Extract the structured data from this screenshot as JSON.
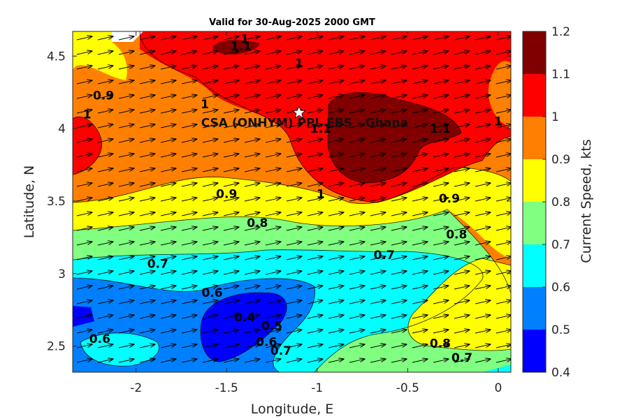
{
  "chart_data": {
    "type": "heatmap",
    "title": "Valid for 30-Aug-2025 2000 GMT",
    "xlabel": "Longitude, E",
    "ylabel": "Latitude, N",
    "colorbar_label": "Current Speed, kts",
    "xlim": [
      -2.35,
      0.07
    ],
    "ylim": [
      2.32,
      4.67
    ],
    "x_ticks": [
      "-2",
      "-1.5",
      "-1",
      "-0.5",
      "0"
    ],
    "x_tick_values": [
      -2,
      -1.5,
      -1,
      -0.5,
      0
    ],
    "y_ticks": [
      "2.5",
      "3",
      "3.5",
      "4",
      "4.5"
    ],
    "y_tick_values": [
      2.5,
      3,
      3.5,
      4,
      4.5
    ],
    "colorbar_ticks": [
      "0.4",
      "0.5",
      "0.6",
      "0.7",
      "0.8",
      "0.9",
      "1",
      "1.1",
      "1.2"
    ],
    "levels": [
      0.4,
      0.5,
      0.6,
      0.7,
      0.8,
      0.9,
      1.0,
      1.1,
      1.2
    ],
    "level_colors": [
      "#0000ff",
      "#0080ff",
      "#00ffff",
      "#80ff80",
      "#ffff00",
      "#ff8000",
      "#ff0000",
      "#800000"
    ],
    "site": {
      "name": "CSA (ONHYM) PPL EBS  - Ghana",
      "lon": -1.1,
      "lat": 4.11
    },
    "contour_labels": [
      {
        "text": "1",
        "lon": -1.4,
        "lat": 4.62
      },
      {
        "text": "1.1",
        "lon": -1.42,
        "lat": 4.57
      },
      {
        "text": "1",
        "lon": -1.1,
        "lat": 4.45
      },
      {
        "text": "0.9",
        "lon": -2.18,
        "lat": 4.23
      },
      {
        "text": "1",
        "lon": -2.27,
        "lat": 4.1
      },
      {
        "text": "1",
        "lon": -1.62,
        "lat": 4.17
      },
      {
        "text": "1.1",
        "lon": -0.98,
        "lat": 4.0
      },
      {
        "text": "1.1",
        "lon": -0.32,
        "lat": 4.0
      },
      {
        "text": "1",
        "lon": 0.0,
        "lat": 4.05
      },
      {
        "text": "0.9",
        "lon": -1.5,
        "lat": 3.55
      },
      {
        "text": "1",
        "lon": -0.98,
        "lat": 3.55
      },
      {
        "text": "0.9",
        "lon": -0.27,
        "lat": 3.52
      },
      {
        "text": "0.8",
        "lon": -1.33,
        "lat": 3.35
      },
      {
        "text": "0.8",
        "lon": -0.23,
        "lat": 3.27
      },
      {
        "text": "0.7",
        "lon": -0.63,
        "lat": 3.13
      },
      {
        "text": "0.7",
        "lon": -1.88,
        "lat": 3.07
      },
      {
        "text": "0.6",
        "lon": -1.58,
        "lat": 2.87
      },
      {
        "text": "0.4",
        "lon": -1.4,
        "lat": 2.7
      },
      {
        "text": "0.5",
        "lon": -1.25,
        "lat": 2.64
      },
      {
        "text": "0.6",
        "lon": -2.2,
        "lat": 2.55
      },
      {
        "text": "0.6",
        "lon": -1.28,
        "lat": 2.53
      },
      {
        "text": "0.7",
        "lon": -1.2,
        "lat": 2.47
      },
      {
        "text": "0.8",
        "lon": -0.32,
        "lat": 2.52
      },
      {
        "text": "0.7",
        "lon": -0.2,
        "lat": 2.42
      }
    ]
  }
}
